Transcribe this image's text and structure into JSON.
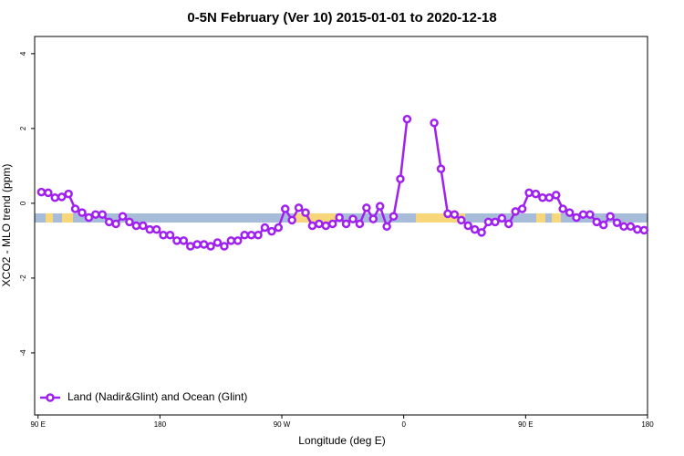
{
  "chart_data": {
    "type": "line",
    "title": "0-5N February (Ver 10)   2015-01-01 to 2020-12-18",
    "xlabel": "Longitude (deg E)",
    "ylabel": "XCO2 - MLO trend (ppm)",
    "xlim": [
      87.5,
      540
    ],
    "ylim": [
      -5.66,
      4.46
    ],
    "xticks": [
      {
        "value": 90,
        "label": "90 E"
      },
      {
        "value": 180,
        "label": "180"
      },
      {
        "value": 270,
        "label": "90 W"
      },
      {
        "value": 360,
        "label": "0"
      },
      {
        "value": 450,
        "label": "90 E"
      },
      {
        "value": 540,
        "label": "180"
      }
    ],
    "yticks": [
      -4,
      -2,
      0,
      2,
      4
    ],
    "legend": "bottom-left",
    "x": [
      92.5,
      97.5,
      102.5,
      107.5,
      112.5,
      117.5,
      122.5,
      127.5,
      132.5,
      137.5,
      142.5,
      147.5,
      152.5,
      157.5,
      162.5,
      167.5,
      172.5,
      177.5,
      182.5,
      187.5,
      192.5,
      197.5,
      202.5,
      207.5,
      212.5,
      217.5,
      222.5,
      227.5,
      232.5,
      237.5,
      242.5,
      247.5,
      252.5,
      257.5,
      262.5,
      267.5,
      272.5,
      277.5,
      282.5,
      287.5,
      292.5,
      297.5,
      302.5,
      307.5,
      312.5,
      317.5,
      322.5,
      327.5,
      332.5,
      337.5,
      342.5,
      347.5,
      352.5,
      357.5,
      362.5,
      367.5,
      372.5,
      377.5,
      382.5,
      387.5,
      392.5,
      397.5,
      402.5,
      407.5,
      412.5,
      417.5,
      422.5,
      427.5,
      432.5,
      437.5,
      442.5,
      447.5,
      452.5,
      457.5,
      462.5,
      467.5,
      472.5,
      477.5,
      482.5,
      487.5,
      492.5,
      497.5,
      502.5,
      507.5,
      512.5,
      517.5,
      522.5,
      527.5,
      532.5,
      537.5
    ],
    "series": [
      {
        "name": "Land (Nadir&Glint) and Ocean (Glint)",
        "color": "#a020f0",
        "values": [
          0.3,
          0.28,
          0.15,
          0.17,
          0.25,
          -0.15,
          -0.25,
          -0.38,
          -0.3,
          -0.3,
          -0.5,
          -0.55,
          -0.35,
          -0.5,
          -0.6,
          -0.6,
          -0.7,
          -0.7,
          -0.85,
          -0.85,
          -1.0,
          -1.0,
          -1.15,
          -1.1,
          -1.1,
          -1.15,
          -1.05,
          -1.15,
          -1.0,
          -1.0,
          -0.85,
          -0.85,
          -0.85,
          -0.65,
          -0.75,
          -0.65,
          -0.15,
          -0.45,
          -0.12,
          -0.25,
          -0.6,
          -0.55,
          -0.6,
          -0.55,
          -0.38,
          -0.55,
          -0.42,
          -0.55,
          -0.12,
          -0.42,
          -0.08,
          -0.62,
          -0.35,
          0.65,
          2.25,
          null,
          null,
          null,
          2.15,
          0.92,
          -0.28,
          -0.3,
          -0.45,
          -0.6,
          -0.7,
          -0.78,
          -0.5,
          -0.5,
          -0.4,
          -0.55,
          -0.22,
          -0.15,
          0.28,
          0.25,
          0.15,
          0.15,
          0.22,
          -0.15,
          -0.25,
          -0.38,
          -0.3,
          -0.3,
          -0.5,
          -0.58,
          -0.35,
          -0.52,
          -0.62,
          -0.62,
          -0.7,
          -0.72
        ]
      }
    ]
  }
}
